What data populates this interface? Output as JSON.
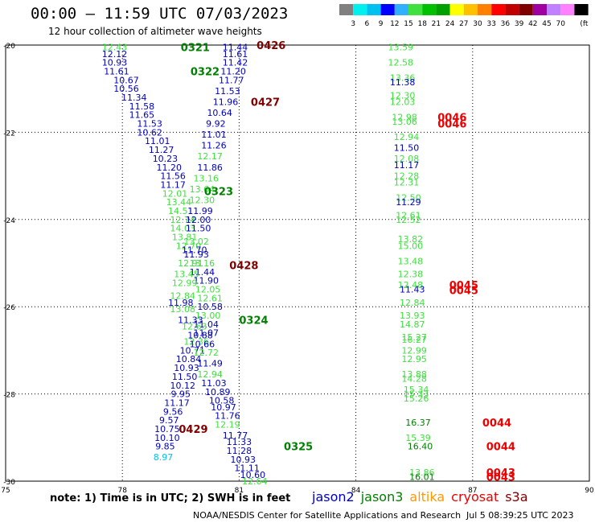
{
  "title": "00:00 – 11:59 UTC 07/03/2023",
  "subtitle": "12 hour collection of altimeter wave heights",
  "scale": {
    "colors": [
      "#808080",
      "#00f0f0",
      "#00c0f0",
      "#0000ff",
      "#30b0ff",
      "#40e040",
      "#00c000",
      "#00a000",
      "#ffff00",
      "#ffc000",
      "#ff8000",
      "#ff0000",
      "#c00000",
      "#800000",
      "#a000a0",
      "#c080ff",
      "#ff80ff",
      "#000000"
    ],
    "labels": [
      "3",
      "6",
      "9",
      "12",
      "15",
      "18",
      "21",
      "24",
      "27",
      "30",
      "33",
      "36",
      "39",
      "42",
      "45",
      "70"
    ],
    "unit": "(ft)"
  },
  "axes": {
    "x_ticks": [
      "75",
      "78",
      "81",
      "84",
      "87",
      "90"
    ],
    "y_ticks": [
      "-20",
      "-22",
      "-24",
      "-26",
      "-28",
      "-30"
    ]
  },
  "note": "note:  1) Time is in UTC;  2) SWH is in feet",
  "satellites": [
    {
      "name": "jason2",
      "color": "#0000c0"
    },
    {
      "name": "jason3",
      "color": "#008000"
    },
    {
      "name": "altika",
      "color": "#ff9900"
    },
    {
      "name": "cryosat",
      "color": "#ee0000"
    },
    {
      "name": "s3a",
      "color": "#800000"
    }
  ],
  "credit": "NOAA/NESDIS Center for Satellite Applications and Research",
  "credit_date": "Jul  5 08:39:25 UTC 2023",
  "time_labels": [
    {
      "text": "0321",
      "lon": 79.5,
      "lat": -20.05,
      "color": "#008000"
    },
    {
      "text": "0322",
      "lon": 79.75,
      "lat": -20.6,
      "color": "#008000"
    },
    {
      "text": "0323",
      "lon": 80.1,
      "lat": -23.35,
      "color": "#008000"
    },
    {
      "text": "0324",
      "lon": 81.0,
      "lat": -26.3,
      "color": "#008000"
    },
    {
      "text": "0325",
      "lon": 82.15,
      "lat": -29.2,
      "color": "#008000"
    },
    {
      "text": "0426",
      "lon": 81.45,
      "lat": -20.0,
      "color": "#800000"
    },
    {
      "text": "0427",
      "lon": 81.3,
      "lat": -21.3,
      "color": "#800000"
    },
    {
      "text": "0428",
      "lon": 80.75,
      "lat": -25.05,
      "color": "#800000"
    },
    {
      "text": "0429",
      "lon": 79.45,
      "lat": -28.8,
      "color": "#800000"
    },
    {
      "text": "0046",
      "lon": 86.1,
      "lat": -21.65,
      "color": "#ee0000"
    },
    {
      "text": "0046",
      "lon": 86.1,
      "lat": -21.8,
      "color": "#ee0000"
    },
    {
      "text": "0045",
      "lon": 86.4,
      "lat": -25.5,
      "color": "#ee0000"
    },
    {
      "text": "0045",
      "lon": 86.4,
      "lat": -25.62,
      "color": "#ee0000"
    },
    {
      "text": "0044",
      "lon": 87.25,
      "lat": -28.65,
      "color": "#ee0000"
    },
    {
      "text": "0044",
      "lon": 87.35,
      "lat": -29.2,
      "color": "#ee0000"
    },
    {
      "text": "0043",
      "lon": 87.35,
      "lat": -29.8,
      "color": "#ee0000"
    },
    {
      "text": "0043",
      "lon": 87.35,
      "lat": -29.9,
      "color": "#ee0000"
    }
  ],
  "swh_points": [
    {
      "v": "12.43",
      "lon": 77.8,
      "lat": -20.05,
      "c": "#40e040"
    },
    {
      "v": "12.12",
      "lon": 77.8,
      "lat": -20.2,
      "c": "#0000c0"
    },
    {
      "v": "10.93",
      "lon": 77.8,
      "lat": -20.4,
      "c": "#0000c0"
    },
    {
      "v": "11.61",
      "lon": 77.85,
      "lat": -20.6,
      "c": "#0000c0"
    },
    {
      "v": "10.67",
      "lon": 78.1,
      "lat": -20.8,
      "c": "#0000c0"
    },
    {
      "v": "10.56",
      "lon": 78.1,
      "lat": -21.0,
      "c": "#0000c0"
    },
    {
      "v": "11.34",
      "lon": 78.3,
      "lat": -21.2,
      "c": "#0000c0"
    },
    {
      "v": "11.58",
      "lon": 78.5,
      "lat": -21.4,
      "c": "#0000c0"
    },
    {
      "v": "11.65",
      "lon": 78.5,
      "lat": -21.6,
      "c": "#0000c0"
    },
    {
      "v": "11.53",
      "lon": 78.7,
      "lat": -21.8,
      "c": "#0000c0"
    },
    {
      "v": "10.62",
      "lon": 78.7,
      "lat": -22.0,
      "c": "#0000c0"
    },
    {
      "v": "11.01",
      "lon": 78.9,
      "lat": -22.2,
      "c": "#0000c0"
    },
    {
      "v": "11.27",
      "lon": 79.0,
      "lat": -22.4,
      "c": "#0000c0"
    },
    {
      "v": "10.23",
      "lon": 79.1,
      "lat": -22.6,
      "c": "#0000c0"
    },
    {
      "v": "11.20",
      "lon": 79.2,
      "lat": -22.8,
      "c": "#0000c0"
    },
    {
      "v": "11.56",
      "lon": 79.3,
      "lat": -23.0,
      "c": "#0000c0"
    },
    {
      "v": "11.17",
      "lon": 79.3,
      "lat": -23.2,
      "c": "#0000c0"
    },
    {
      "v": "12.01",
      "lon": 79.35,
      "lat": -23.4,
      "c": "#40e040"
    },
    {
      "v": "13.44",
      "lon": 79.45,
      "lat": -23.6,
      "c": "#40e040"
    },
    {
      "v": "14.51",
      "lon": 79.5,
      "lat": -23.8,
      "c": "#40e040"
    },
    {
      "v": "12.74",
      "lon": 79.55,
      "lat": -24.0,
      "c": "#40e040"
    },
    {
      "v": "14.03",
      "lon": 79.55,
      "lat": -24.2,
      "c": "#40e040"
    },
    {
      "v": "13.81",
      "lon": 79.6,
      "lat": -24.4,
      "c": "#40e040"
    },
    {
      "v": "12.70",
      "lon": 79.7,
      "lat": -24.6,
      "c": "#40e040"
    },
    {
      "v": "11.93",
      "lon": 79.9,
      "lat": -24.8,
      "c": "#0000c0"
    },
    {
      "v": "13.16",
      "lon": 80.05,
      "lat": -25.0,
      "c": "#40e040"
    },
    {
      "v": "11.44",
      "lon": 80.05,
      "lat": -25.2,
      "c": "#0000c0"
    },
    {
      "v": "11.90",
      "lon": 80.15,
      "lat": -25.4,
      "c": "#0000c0"
    },
    {
      "v": "12.05",
      "lon": 80.2,
      "lat": -25.6,
      "c": "#40e040"
    },
    {
      "v": "12.61",
      "lon": 80.25,
      "lat": -25.8,
      "c": "#40e040"
    },
    {
      "v": "10.58",
      "lon": 80.25,
      "lat": -26.0,
      "c": "#0000c0"
    },
    {
      "v": "13.00",
      "lon": 80.2,
      "lat": -26.2,
      "c": "#40e040"
    },
    {
      "v": "11.04",
      "lon": 80.15,
      "lat": -26.4,
      "c": "#0000c0"
    },
    {
      "v": "11.07",
      "lon": 80.15,
      "lat": -26.6,
      "c": "#0000c0"
    },
    {
      "v": "12.36",
      "lon": 79.9,
      "lat": -26.8,
      "c": "#40e040"
    },
    {
      "v": "10.71",
      "lon": 79.8,
      "lat": -27.0,
      "c": "#0000c0"
    },
    {
      "v": "10.84",
      "lon": 79.7,
      "lat": -27.2,
      "c": "#0000c0"
    },
    {
      "v": "10.93",
      "lon": 79.65,
      "lat": -27.4,
      "c": "#0000c0"
    },
    {
      "v": "11.50",
      "lon": 79.6,
      "lat": -27.6,
      "c": "#0000c0"
    },
    {
      "v": "10.12",
      "lon": 79.55,
      "lat": -27.8,
      "c": "#0000c0"
    },
    {
      "v": "9.95",
      "lon": 79.5,
      "lat": -28.0,
      "c": "#0000c0"
    },
    {
      "v": "11.17",
      "lon": 79.4,
      "lat": -28.2,
      "c": "#0000c0"
    },
    {
      "v": "9.56",
      "lon": 79.3,
      "lat": -28.4,
      "c": "#0000c0"
    },
    {
      "v": "9.57",
      "lon": 79.2,
      "lat": -28.6,
      "c": "#0000c0"
    },
    {
      "v": "10.75",
      "lon": 79.15,
      "lat": -28.8,
      "c": "#0000c0"
    },
    {
      "v": "10.10",
      "lon": 79.15,
      "lat": -29.0,
      "c": "#0000c0"
    },
    {
      "v": "9.85",
      "lon": 79.1,
      "lat": -29.2,
      "c": "#0000c0"
    },
    {
      "v": "8.97",
      "lon": 79.05,
      "lat": -29.45,
      "c": "#00c0f0"
    },
    {
      "v": "11.44",
      "lon": 80.9,
      "lat": -20.05,
      "c": "#0000c0"
    },
    {
      "v": "11.61",
      "lon": 80.9,
      "lat": -20.2,
      "c": "#0000c0"
    },
    {
      "v": "11.42",
      "lon": 80.9,
      "lat": -20.4,
      "c": "#0000c0"
    },
    {
      "v": "11.20",
      "lon": 80.85,
      "lat": -20.6,
      "c": "#0000c0"
    },
    {
      "v": "11.77",
      "lon": 80.8,
      "lat": -20.8,
      "c": "#0000c0"
    },
    {
      "v": "11.53",
      "lon": 80.7,
      "lat": -21.05,
      "c": "#0000c0"
    },
    {
      "v": "11.96",
      "lon": 80.65,
      "lat": -21.3,
      "c": "#0000c0"
    },
    {
      "v": "10.64",
      "lon": 80.5,
      "lat": -21.55,
      "c": "#0000c0"
    },
    {
      "v": "9.92",
      "lon": 80.4,
      "lat": -21.8,
      "c": "#0000c0"
    },
    {
      "v": "11.01",
      "lon": 80.35,
      "lat": -22.05,
      "c": "#0000c0"
    },
    {
      "v": "11.26",
      "lon": 80.35,
      "lat": -22.3,
      "c": "#0000c0"
    },
    {
      "v": "12.17",
      "lon": 80.25,
      "lat": -22.55,
      "c": "#40e040"
    },
    {
      "v": "11.86",
      "lon": 80.25,
      "lat": -22.8,
      "c": "#0000c0"
    },
    {
      "v": "13.16",
      "lon": 80.15,
      "lat": -23.05,
      "c": "#40e040"
    },
    {
      "v": "13.64",
      "lon": 80.05,
      "lat": -23.3,
      "c": "#40e040"
    },
    {
      "v": "12.30",
      "lon": 80.05,
      "lat": -23.55,
      "c": "#40e040"
    },
    {
      "v": "11.99",
      "lon": 80.0,
      "lat": -23.8,
      "c": "#0000c0"
    },
    {
      "v": "12.00",
      "lon": 79.95,
      "lat": -24.0,
      "c": "#0000c0"
    },
    {
      "v": "11.50",
      "lon": 79.95,
      "lat": -24.2,
      "c": "#0000c0"
    },
    {
      "v": "13.02",
      "lon": 79.9,
      "lat": -24.5,
      "c": "#40e040"
    },
    {
      "v": "11.70",
      "lon": 79.85,
      "lat": -24.7,
      "c": "#0000c0"
    },
    {
      "v": "12.91",
      "lon": 79.75,
      "lat": -25.0,
      "c": "#40e040"
    },
    {
      "v": "13.45",
      "lon": 79.65,
      "lat": -25.25,
      "c": "#40e040"
    },
    {
      "v": "12.99",
      "lon": 79.6,
      "lat": -25.45,
      "c": "#40e040"
    },
    {
      "v": "12.84",
      "lon": 79.55,
      "lat": -25.75,
      "c": "#40e040"
    },
    {
      "v": "11.98",
      "lon": 79.5,
      "lat": -25.9,
      "c": "#0000c0"
    },
    {
      "v": "13.08",
      "lon": 79.55,
      "lat": -26.05,
      "c": "#40e040"
    },
    {
      "v": "11.33",
      "lon": 79.75,
      "lat": -26.3,
      "c": "#0000c0"
    },
    {
      "v": "12.63",
      "lon": 79.85,
      "lat": -26.45,
      "c": "#40e040"
    },
    {
      "v": "10.88",
      "lon": 80.0,
      "lat": -26.65,
      "c": "#0000c0"
    },
    {
      "v": "10.66",
      "lon": 80.05,
      "lat": -26.85,
      "c": "#0000c0"
    },
    {
      "v": "12.72",
      "lon": 80.15,
      "lat": -27.05,
      "c": "#40e040"
    },
    {
      "v": "11.49",
      "lon": 80.25,
      "lat": -27.3,
      "c": "#0000c0"
    },
    {
      "v": "12.94",
      "lon": 80.25,
      "lat": -27.55,
      "c": "#40e040"
    },
    {
      "v": "11.03",
      "lon": 80.35,
      "lat": -27.75,
      "c": "#0000c0"
    },
    {
      "v": "10.89",
      "lon": 80.45,
      "lat": -27.95,
      "c": "#0000c0"
    },
    {
      "v": "10.58",
      "lon": 80.55,
      "lat": -28.15,
      "c": "#0000c0"
    },
    {
      "v": "10.97",
      "lon": 80.6,
      "lat": -28.3,
      "c": "#0000c0"
    },
    {
      "v": "11.76",
      "lon": 80.7,
      "lat": -28.5,
      "c": "#0000c0"
    },
    {
      "v": "12.19",
      "lon": 80.7,
      "lat": -28.7,
      "c": "#40e040"
    },
    {
      "v": "11.77",
      "lon": 80.9,
      "lat": -28.95,
      "c": "#0000c0"
    },
    {
      "v": "11.33",
      "lon": 81.0,
      "lat": -29.1,
      "c": "#0000c0"
    },
    {
      "v": "11.28",
      "lon": 81.0,
      "lat": -29.3,
      "c": "#0000c0"
    },
    {
      "v": "10.93",
      "lon": 81.1,
      "lat": -29.5,
      "c": "#0000c0"
    },
    {
      "v": "11.11",
      "lon": 81.2,
      "lat": -29.7,
      "c": "#0000c0"
    },
    {
      "v": "10.60",
      "lon": 81.35,
      "lat": -29.85,
      "c": "#0000c0"
    },
    {
      "v": "12.64",
      "lon": 81.4,
      "lat": -30.0,
      "c": "#40e040"
    },
    {
      "v": "13.59",
      "lon": 85.15,
      "lat": -20.05,
      "c": "#40e040"
    },
    {
      "v": "12.58",
      "lon": 85.15,
      "lat": -20.4,
      "c": "#40e040"
    },
    {
      "v": "13.36",
      "lon": 85.2,
      "lat": -20.75,
      "c": "#40e040"
    },
    {
      "v": "11.38",
      "lon": 85.2,
      "lat": -20.85,
      "c": "#0000c0"
    },
    {
      "v": "12.30",
      "lon": 85.2,
      "lat": -21.15,
      "c": "#40e040"
    },
    {
      "v": "12.03",
      "lon": 85.2,
      "lat": -21.3,
      "c": "#40e040"
    },
    {
      "v": "12.98",
      "lon": 85.25,
      "lat": -21.65,
      "c": "#40e040"
    },
    {
      "v": "13.06",
      "lon": 85.25,
      "lat": -21.75,
      "c": "#40e040"
    },
    {
      "v": "12.94",
      "lon": 85.3,
      "lat": -22.1,
      "c": "#40e040"
    },
    {
      "v": "11.50",
      "lon": 85.3,
      "lat": -22.35,
      "c": "#0000c0"
    },
    {
      "v": "12.08",
      "lon": 85.3,
      "lat": -22.6,
      "c": "#40e040"
    },
    {
      "v": "11.17",
      "lon": 85.3,
      "lat": -22.75,
      "c": "#0000c0"
    },
    {
      "v": "12.28",
      "lon": 85.3,
      "lat": -23.0,
      "c": "#40e040"
    },
    {
      "v": "12.31",
      "lon": 85.3,
      "lat": -23.15,
      "c": "#40e040"
    },
    {
      "v": "12.50",
      "lon": 85.35,
      "lat": -23.5,
      "c": "#40e040"
    },
    {
      "v": "11.29",
      "lon": 85.35,
      "lat": -23.6,
      "c": "#0000c0"
    },
    {
      "v": "12.61",
      "lon": 85.35,
      "lat": -23.9,
      "c": "#40e040"
    },
    {
      "v": "12.52",
      "lon": 85.35,
      "lat": -24.0,
      "c": "#40e040"
    },
    {
      "v": "13.82",
      "lon": 85.4,
      "lat": -24.45,
      "c": "#40e040"
    },
    {
      "v": "15.00",
      "lon": 85.4,
      "lat": -24.6,
      "c": "#40e040"
    },
    {
      "v": "13.48",
      "lon": 85.4,
      "lat": -24.95,
      "c": "#40e040"
    },
    {
      "v": "12.38",
      "lon": 85.4,
      "lat": -25.25,
      "c": "#40e040"
    },
    {
      "v": "12.48",
      "lon": 85.4,
      "lat": -25.5,
      "c": "#40e040"
    },
    {
      "v": "11.43",
      "lon": 85.45,
      "lat": -25.6,
      "c": "#0000c0"
    },
    {
      "v": "12.84",
      "lon": 85.45,
      "lat": -25.9,
      "c": "#40e040"
    },
    {
      "v": "13.93",
      "lon": 85.45,
      "lat": -26.2,
      "c": "#40e040"
    },
    {
      "v": "14.87",
      "lon": 85.45,
      "lat": -26.4,
      "c": "#40e040"
    },
    {
      "v": "15.27",
      "lon": 85.5,
      "lat": -26.7,
      "c": "#40e040"
    },
    {
      "v": "16.27",
      "lon": 85.5,
      "lat": -26.75,
      "c": "#40e040"
    },
    {
      "v": "12.99",
      "lon": 85.5,
      "lat": -27.0,
      "c": "#40e040"
    },
    {
      "v": "12.95",
      "lon": 85.5,
      "lat": -27.2,
      "c": "#40e040"
    },
    {
      "v": "13.88",
      "lon": 85.5,
      "lat": -27.55,
      "c": "#40e040"
    },
    {
      "v": "14.28",
      "lon": 85.5,
      "lat": -27.65,
      "c": "#40e040"
    },
    {
      "v": "15.34",
      "lon": 85.55,
      "lat": -27.9,
      "c": "#40e040"
    },
    {
      "v": "15.33",
      "lon": 85.55,
      "lat": -28.0,
      "c": "#40e040"
    },
    {
      "v": "15.26",
      "lon": 85.55,
      "lat": -28.1,
      "c": "#40e040"
    },
    {
      "v": "16.37",
      "lon": 85.6,
      "lat": -28.65,
      "c": "#008000"
    },
    {
      "v": "15.39",
      "lon": 85.6,
      "lat": -29.0,
      "c": "#40e040"
    },
    {
      "v": "16.40",
      "lon": 85.65,
      "lat": -29.2,
      "c": "#008000"
    },
    {
      "v": "13.86",
      "lon": 85.7,
      "lat": -29.8,
      "c": "#40e040"
    },
    {
      "v": "16.01",
      "lon": 85.7,
      "lat": -29.9,
      "c": "#008000"
    }
  ]
}
